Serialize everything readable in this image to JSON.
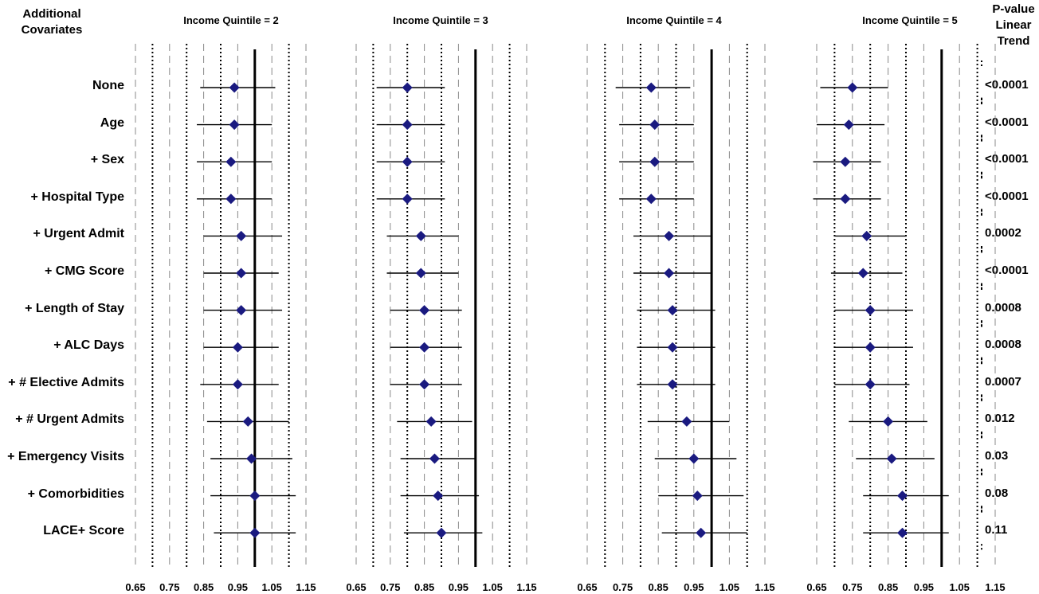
{
  "header": {
    "covariates_title": [
      "Additional",
      "Covariates"
    ],
    "pvalue_title": [
      "P-value",
      "Linear",
      "Trend"
    ]
  },
  "rows": [
    "None",
    "Age",
    "+ Sex",
    "+ Hospital Type",
    "+ Urgent Admit",
    "+ CMG Score",
    "+ Length of Stay",
    "+ ALC Days",
    "+ # Elective Admits",
    "+ # Urgent Admits",
    "+ Emergency Visits",
    "+ Comorbidities",
    "LACE+ Score"
  ],
  "p_values": [
    "<0.0001",
    "<0.0001",
    "<0.0001",
    "<0.0001",
    "0.0002",
    "<0.0001",
    "0.0008",
    "0.0008",
    "0.0007",
    "0.012",
    "0.03",
    "0.08",
    "0.11"
  ],
  "chart_data": {
    "type": "forest",
    "x_ticks": [
      "0.65",
      "0.75",
      "0.85",
      "0.95",
      "1.05",
      "1.15"
    ],
    "xlim": [
      0.65,
      1.15
    ],
    "reference_line": 1.0,
    "grid": true,
    "panels": [
      {
        "title": "Income Quintile = 2",
        "points": [
          {
            "est": 0.94,
            "lo": 0.84,
            "hi": 1.06
          },
          {
            "est": 0.94,
            "lo": 0.83,
            "hi": 1.05
          },
          {
            "est": 0.93,
            "lo": 0.83,
            "hi": 1.05
          },
          {
            "est": 0.93,
            "lo": 0.83,
            "hi": 1.05
          },
          {
            "est": 0.96,
            "lo": 0.85,
            "hi": 1.08
          },
          {
            "est": 0.96,
            "lo": 0.85,
            "hi": 1.07
          },
          {
            "est": 0.96,
            "lo": 0.85,
            "hi": 1.08
          },
          {
            "est": 0.95,
            "lo": 0.85,
            "hi": 1.07
          },
          {
            "est": 0.95,
            "lo": 0.84,
            "hi": 1.07
          },
          {
            "est": 0.98,
            "lo": 0.86,
            "hi": 1.1
          },
          {
            "est": 0.99,
            "lo": 0.87,
            "hi": 1.11
          },
          {
            "est": 1.0,
            "lo": 0.87,
            "hi": 1.12
          },
          {
            "est": 1.0,
            "lo": 0.88,
            "hi": 1.12
          }
        ]
      },
      {
        "title": "Income Quintile = 3",
        "points": [
          {
            "est": 0.8,
            "lo": 0.71,
            "hi": 0.91
          },
          {
            "est": 0.8,
            "lo": 0.71,
            "hi": 0.91
          },
          {
            "est": 0.8,
            "lo": 0.71,
            "hi": 0.91
          },
          {
            "est": 0.8,
            "lo": 0.71,
            "hi": 0.91
          },
          {
            "est": 0.84,
            "lo": 0.74,
            "hi": 0.95
          },
          {
            "est": 0.84,
            "lo": 0.74,
            "hi": 0.95
          },
          {
            "est": 0.85,
            "lo": 0.75,
            "hi": 0.96
          },
          {
            "est": 0.85,
            "lo": 0.75,
            "hi": 0.96
          },
          {
            "est": 0.85,
            "lo": 0.75,
            "hi": 0.96
          },
          {
            "est": 0.87,
            "lo": 0.77,
            "hi": 0.99
          },
          {
            "est": 0.88,
            "lo": 0.78,
            "hi": 1.0
          },
          {
            "est": 0.89,
            "lo": 0.78,
            "hi": 1.01
          },
          {
            "est": 0.9,
            "lo": 0.79,
            "hi": 1.02
          }
        ]
      },
      {
        "title": "Income Quintile = 4",
        "points": [
          {
            "est": 0.83,
            "lo": 0.73,
            "hi": 0.94
          },
          {
            "est": 0.84,
            "lo": 0.74,
            "hi": 0.95
          },
          {
            "est": 0.84,
            "lo": 0.74,
            "hi": 0.95
          },
          {
            "est": 0.83,
            "lo": 0.74,
            "hi": 0.95
          },
          {
            "est": 0.88,
            "lo": 0.78,
            "hi": 1.0
          },
          {
            "est": 0.88,
            "lo": 0.78,
            "hi": 1.0
          },
          {
            "est": 0.89,
            "lo": 0.79,
            "hi": 1.01
          },
          {
            "est": 0.89,
            "lo": 0.79,
            "hi": 1.01
          },
          {
            "est": 0.89,
            "lo": 0.79,
            "hi": 1.01
          },
          {
            "est": 0.93,
            "lo": 0.82,
            "hi": 1.05
          },
          {
            "est": 0.95,
            "lo": 0.84,
            "hi": 1.07
          },
          {
            "est": 0.96,
            "lo": 0.85,
            "hi": 1.09
          },
          {
            "est": 0.97,
            "lo": 0.86,
            "hi": 1.1
          }
        ]
      },
      {
        "title": "Income Quintile = 5",
        "points": [
          {
            "est": 0.75,
            "lo": 0.66,
            "hi": 0.85
          },
          {
            "est": 0.74,
            "lo": 0.65,
            "hi": 0.84
          },
          {
            "est": 0.73,
            "lo": 0.64,
            "hi": 0.83
          },
          {
            "est": 0.73,
            "lo": 0.64,
            "hi": 0.83
          },
          {
            "est": 0.79,
            "lo": 0.7,
            "hi": 0.9
          },
          {
            "est": 0.78,
            "lo": 0.69,
            "hi": 0.89
          },
          {
            "est": 0.8,
            "lo": 0.7,
            "hi": 0.92
          },
          {
            "est": 0.8,
            "lo": 0.7,
            "hi": 0.92
          },
          {
            "est": 0.8,
            "lo": 0.7,
            "hi": 0.91
          },
          {
            "est": 0.85,
            "lo": 0.74,
            "hi": 0.96
          },
          {
            "est": 0.86,
            "lo": 0.76,
            "hi": 0.98
          },
          {
            "est": 0.89,
            "lo": 0.78,
            "hi": 1.02
          },
          {
            "est": 0.89,
            "lo": 0.78,
            "hi": 1.02
          }
        ]
      }
    ]
  },
  "colors": {
    "marker": "#1a1a80",
    "line": "#000000",
    "grid_dash": "#888888",
    "grid_dot": "#000000"
  }
}
